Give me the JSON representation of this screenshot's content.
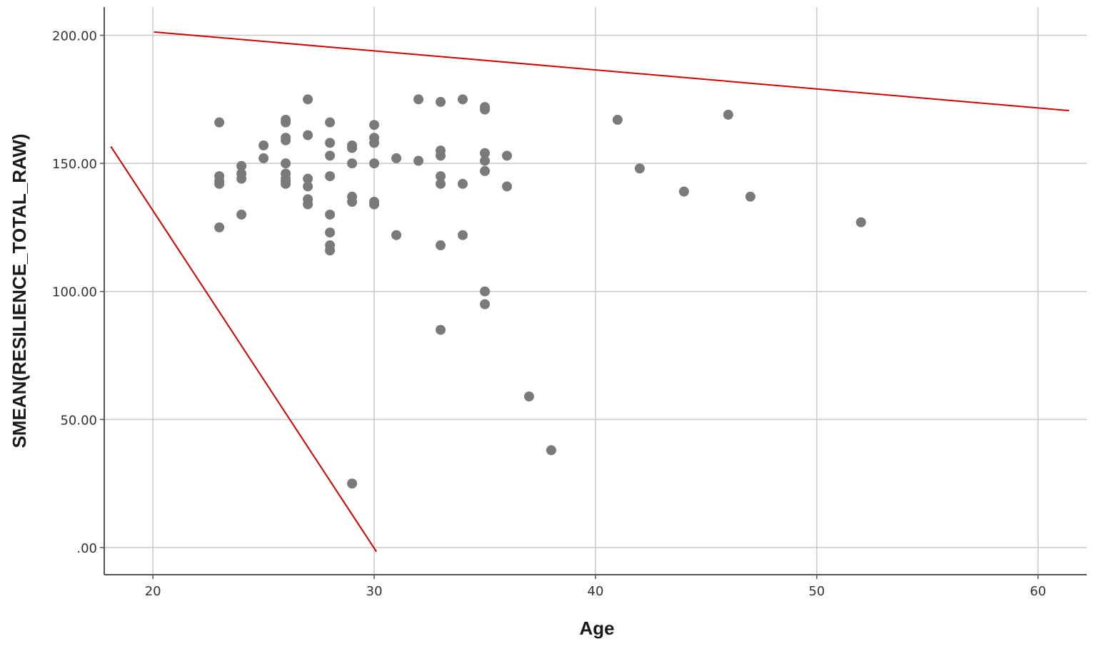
{
  "chart_data": {
    "type": "scatter",
    "xlabel": "Age",
    "ylabel": "SMEAN(RESILIENCE_TOTAL_RAW)",
    "xlim": [
      17.8,
      62.2
    ],
    "ylim": [
      -10.6,
      211
    ],
    "x_ticks": [
      {
        "value": 20,
        "label": "20"
      },
      {
        "value": 30,
        "label": "30"
      },
      {
        "value": 40,
        "label": "40"
      },
      {
        "value": 50,
        "label": "50"
      },
      {
        "value": 60,
        "label": "60"
      }
    ],
    "y_ticks": [
      {
        "value": 0,
        "label": ".00"
      },
      {
        "value": 50,
        "label": "50.00"
      },
      {
        "value": 100,
        "label": "100.00"
      },
      {
        "value": 150,
        "label": "150.00"
      },
      {
        "value": 200,
        "label": "200.00"
      }
    ],
    "grid": true,
    "colors": {
      "points": "#7a7a7a",
      "reference_lines": "#d40000",
      "grid": "#c8c8c8",
      "axis": "#555555"
    },
    "points": [
      {
        "x": 23,
        "y": 166
      },
      {
        "x": 23,
        "y": 145
      },
      {
        "x": 23,
        "y": 143
      },
      {
        "x": 23,
        "y": 142
      },
      {
        "x": 23,
        "y": 125
      },
      {
        "x": 24,
        "y": 149
      },
      {
        "x": 24,
        "y": 146
      },
      {
        "x": 24,
        "y": 144
      },
      {
        "x": 24,
        "y": 130
      },
      {
        "x": 25,
        "y": 157
      },
      {
        "x": 25,
        "y": 152
      },
      {
        "x": 26,
        "y": 167
      },
      {
        "x": 26,
        "y": 166
      },
      {
        "x": 26,
        "y": 160
      },
      {
        "x": 26,
        "y": 159
      },
      {
        "x": 26,
        "y": 150
      },
      {
        "x": 26,
        "y": 146
      },
      {
        "x": 26,
        "y": 144
      },
      {
        "x": 26,
        "y": 143
      },
      {
        "x": 26,
        "y": 142
      },
      {
        "x": 27,
        "y": 175
      },
      {
        "x": 27,
        "y": 161
      },
      {
        "x": 27,
        "y": 144
      },
      {
        "x": 27,
        "y": 141
      },
      {
        "x": 27,
        "y": 136
      },
      {
        "x": 27,
        "y": 134
      },
      {
        "x": 28,
        "y": 166
      },
      {
        "x": 28,
        "y": 158
      },
      {
        "x": 28,
        "y": 153
      },
      {
        "x": 28,
        "y": 145
      },
      {
        "x": 28,
        "y": 130
      },
      {
        "x": 28,
        "y": 123
      },
      {
        "x": 28,
        "y": 118
      },
      {
        "x": 28,
        "y": 116
      },
      {
        "x": 29,
        "y": 157
      },
      {
        "x": 29,
        "y": 156
      },
      {
        "x": 29,
        "y": 150
      },
      {
        "x": 29,
        "y": 137
      },
      {
        "x": 29,
        "y": 135
      },
      {
        "x": 29,
        "y": 25
      },
      {
        "x": 30,
        "y": 165
      },
      {
        "x": 30,
        "y": 160
      },
      {
        "x": 30,
        "y": 158
      },
      {
        "x": 30,
        "y": 150
      },
      {
        "x": 30,
        "y": 135
      },
      {
        "x": 30,
        "y": 134
      },
      {
        "x": 31,
        "y": 152
      },
      {
        "x": 31,
        "y": 122
      },
      {
        "x": 32,
        "y": 175
      },
      {
        "x": 32,
        "y": 151
      },
      {
        "x": 33,
        "y": 174
      },
      {
        "x": 33,
        "y": 155
      },
      {
        "x": 33,
        "y": 153
      },
      {
        "x": 33,
        "y": 145
      },
      {
        "x": 33,
        "y": 142
      },
      {
        "x": 33,
        "y": 118
      },
      {
        "x": 33,
        "y": 85
      },
      {
        "x": 34,
        "y": 175
      },
      {
        "x": 34,
        "y": 142
      },
      {
        "x": 34,
        "y": 122
      },
      {
        "x": 35,
        "y": 172
      },
      {
        "x": 35,
        "y": 171
      },
      {
        "x": 35,
        "y": 154
      },
      {
        "x": 35,
        "y": 151
      },
      {
        "x": 35,
        "y": 147
      },
      {
        "x": 35,
        "y": 100
      },
      {
        "x": 35,
        "y": 95
      },
      {
        "x": 36,
        "y": 153
      },
      {
        "x": 36,
        "y": 141
      },
      {
        "x": 37,
        "y": 59
      },
      {
        "x": 38,
        "y": 38
      },
      {
        "x": 41,
        "y": 167
      },
      {
        "x": 42,
        "y": 148
      },
      {
        "x": 44,
        "y": 139
      },
      {
        "x": 46,
        "y": 169
      },
      {
        "x": 47,
        "y": 137
      },
      {
        "x": 52,
        "y": 127
      }
    ],
    "reference_lines": [
      {
        "x1": 20.05,
        "y1": 201.3,
        "x2": 61.4,
        "y2": 170.6
      },
      {
        "x1": 18.1,
        "y1": 156.6,
        "x2": 30.1,
        "y2": -1.6
      }
    ]
  }
}
